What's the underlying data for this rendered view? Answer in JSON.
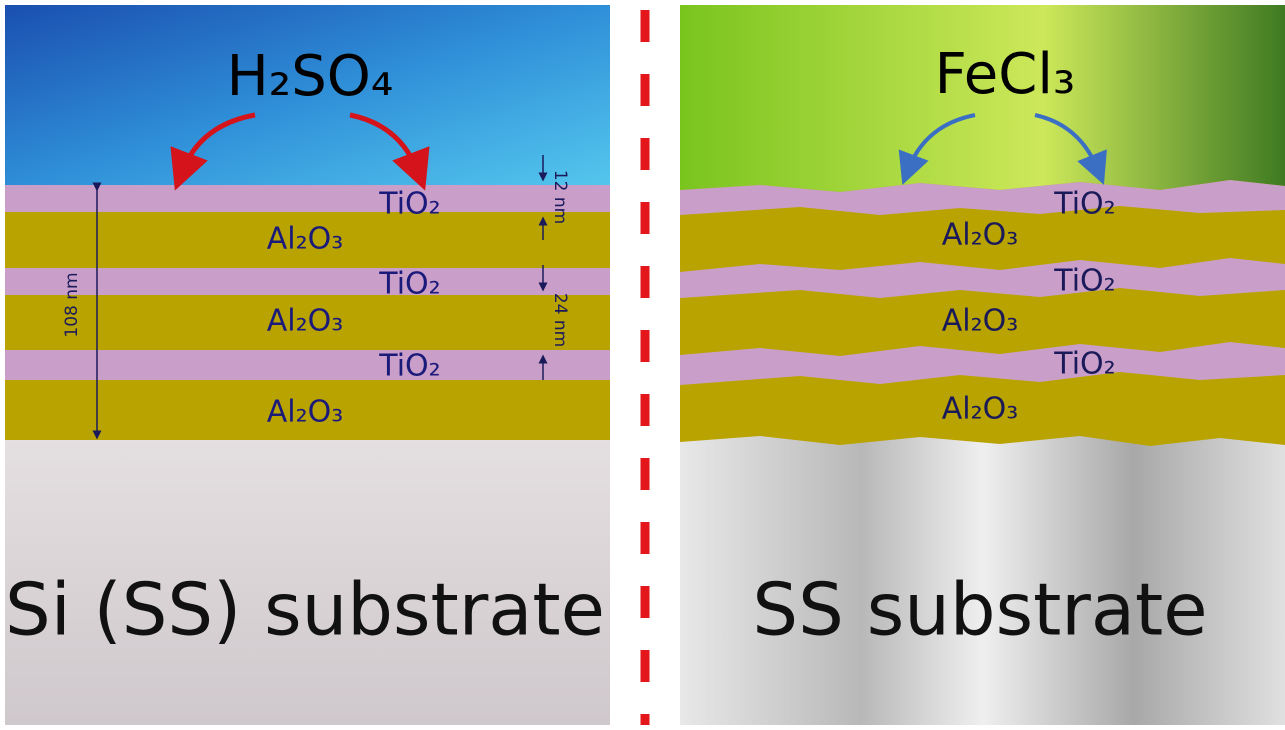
{
  "left": {
    "reagent": "H₂SO₄",
    "layers": [
      "TiO₂",
      "Al₂O₃",
      "TiO₂",
      "Al₂O₃",
      "TiO₂",
      "Al₂O₃"
    ],
    "dimensions": [
      "108 nm",
      "12 nm",
      "24 nm"
    ],
    "substrate": "Si (SS) substrate"
  },
  "right": {
    "reagent": "FeCl₃",
    "layers": [
      "TiO₂",
      "Al₂O₃",
      "TiO₂",
      "Al₂O₃",
      "TiO₂",
      "Al₂O₃"
    ],
    "substrate": "SS substrate"
  }
}
